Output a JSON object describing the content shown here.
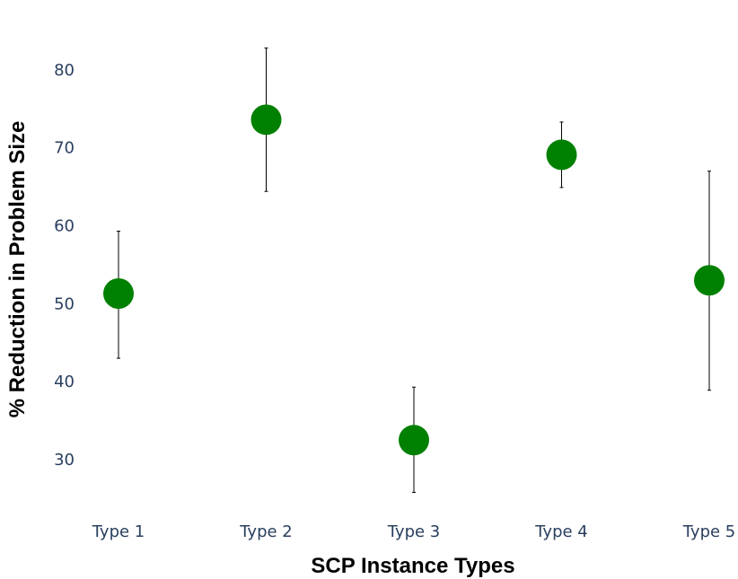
{
  "chart_data": {
    "type": "scatter",
    "title": "",
    "xlabel": "SCP Instance Types",
    "ylabel": "% Reduction in Problem Size",
    "categories": [
      "Type 1",
      "Type 2",
      "Type 3",
      "Type 4",
      "Type 5"
    ],
    "series": [
      {
        "values": [
          51.3,
          73.6,
          32.5,
          69.1,
          53.0
        ],
        "error_low": [
          43.0,
          64.4,
          25.8,
          64.9,
          38.9
        ],
        "error_high": [
          59.3,
          82.8,
          39.3,
          73.3,
          67.0
        ],
        "color": "#008000"
      }
    ],
    "yticks": [
      30,
      40,
      50,
      60,
      70,
      80
    ],
    "ylim": [
      23.4,
      86.5
    ],
    "grid": false,
    "legend": "none"
  }
}
